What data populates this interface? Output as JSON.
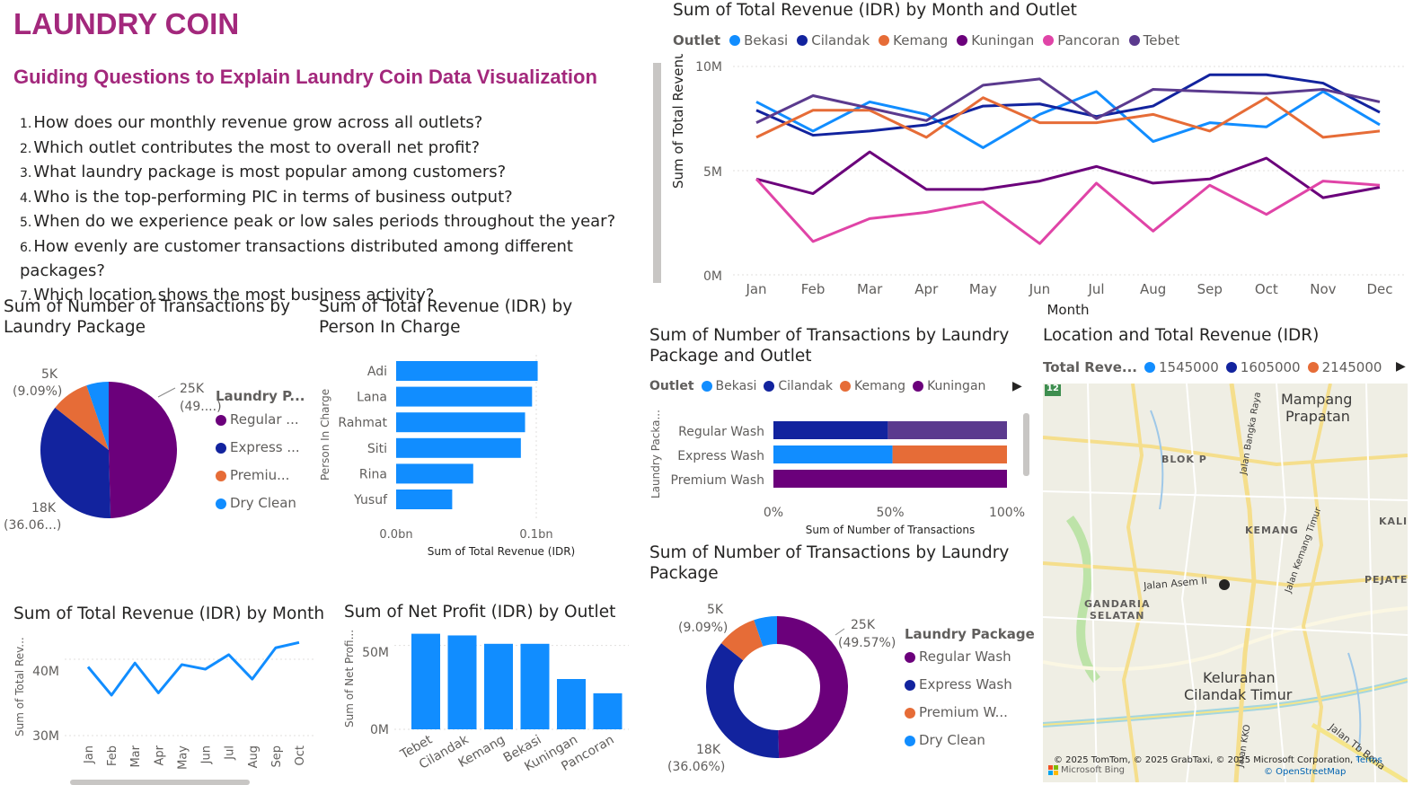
{
  "header": {
    "title": "LAUNDRY COIN",
    "subtitle": "Guiding Questions to Explain Laundry Coin Data Visualization"
  },
  "questions": [
    {
      "num": "1.",
      "text": "How does our monthly revenue grow across all outlets?"
    },
    {
      "num": "2.",
      "text": "Which outlet contributes the most to overall net profit?"
    },
    {
      "num": "3.",
      "text": "What laundry package is most popular among customers?"
    },
    {
      "num": "4.",
      "text": "Who is the top-performing PIC in terms of business output?"
    },
    {
      "num": "5.",
      "text": "When do we experience peak or low sales periods throughout the year?"
    },
    {
      "num": "6.",
      "text": "How evenly are customer transactions distributed among different packages?"
    },
    {
      "num": "7.",
      "text": "Which location shows the most business activity?"
    }
  ],
  "colors": {
    "accent": "#a3287c",
    "bekasi": "#118dff",
    "cilandak": "#12239e",
    "kemang": "#e66c37",
    "kuningan": "#6b007b",
    "pancoran": "#e044a7",
    "tebet": "#5b3a8e",
    "bar": "#118dff"
  },
  "revenue_by_month_outlet": {
    "title": "Sum of Total Revenue (IDR) by Month and Outlet",
    "legend_title": "Outlet",
    "xlabel": "Month",
    "ylabel": "Sum of Total Revenue (IDR)",
    "y_ticks": [
      "10M",
      "5M",
      "0M"
    ],
    "months": [
      "Jan",
      "Feb",
      "Mar",
      "Apr",
      "May",
      "Jun",
      "Jul",
      "Aug",
      "Sep",
      "Oct",
      "Nov",
      "Dec"
    ]
  },
  "pie1": {
    "title": "Sum of Number of Transactions by Laundry Package",
    "legend_title": "Laundry P...",
    "legend": [
      "Regular ...",
      "Express ...",
      "Premiu...",
      "Dry Clean"
    ],
    "label_top_right": [
      "25K",
      "(49....)"
    ],
    "label_bottom_left": [
      "18K",
      "(36.06...)"
    ],
    "label_top_left": [
      "5K",
      "(9.09%)"
    ]
  },
  "pic_chart": {
    "title": "Sum of Total Revenue (IDR) by Person In Charge",
    "ylabel": "Person In Charge",
    "xlabel": "Sum of Total Revenue (IDR)",
    "x_ticks": [
      "0.0bn",
      "0.1bn"
    ]
  },
  "stacked_chart": {
    "title": "Sum of Number of Transactions by Laundry Package and Outlet",
    "legend_title": "Outlet",
    "legend": [
      "Bekasi",
      "Cilandak",
      "Kemang",
      "Kuningan"
    ],
    "ylabel": "Laundry Packa...",
    "xlabel": "Sum of Number of Transactions",
    "x_ticks": [
      "0%",
      "50%",
      "100%"
    ]
  },
  "map": {
    "title": "Location and Total Revenue (IDR)",
    "legend_title": "Total Reve...",
    "legend": [
      "1545000",
      "1605000",
      "2145000"
    ],
    "labels": {
      "mampang": "Mampang",
      "prapatan": "Prapatan",
      "blokp": "BLOK P",
      "kemang": "KEMANG",
      "kali": "KALI",
      "pejate": "PEJATE",
      "gandaria": "GANDARIA",
      "selatan": "SELATAN",
      "kelurahan": "Kelurahan",
      "cilandak_timur": "Cilandak Timur",
      "jalan_asem": "Jalan Asem II",
      "jalan_bangka": "Jalan Bangka Raya",
      "jalan_kemang": "Jalan Kemang Timur",
      "jalan_tb": "Jalan Tb Bona",
      "jalan_kko": "Jalan KKO",
      "road_num": "12"
    },
    "copyright": "© 2025 TomTom, © 2025 GrabTaxi, © 2025 Microsoft Corporation,",
    "terms": "Terms",
    "bing": "Microsoft Bing",
    "osm": "© OpenStreetMap"
  },
  "revenue_by_month": {
    "title": "Sum of Total Revenue (IDR) by Month",
    "ylabel": "Sum of Total Rev...",
    "y_ticks": [
      "40M",
      "30M"
    ],
    "months": [
      "Jan",
      "Feb",
      "Mar",
      "Apr",
      "May",
      "Jun",
      "Jul",
      "Aug",
      "Sep",
      "Oct"
    ]
  },
  "net_profit": {
    "title": "Sum of Net Profit (IDR) by Outlet",
    "ylabel": "Sum of Net Profi...",
    "y_ticks": [
      "50M",
      "0M"
    ]
  },
  "donut": {
    "title": "Sum of Number of Transactions by Laundry Package",
    "legend_title": "Laundry Package",
    "legend": [
      "Regular Wash",
      "Express Wash",
      "Premium W...",
      "Dry Clean"
    ],
    "label_top_right": [
      "25K",
      "(49.57%)"
    ],
    "label_bottom_left": [
      "18K",
      "(36.06%)"
    ],
    "label_top_left": [
      "5K",
      "(9.09%)"
    ]
  },
  "chart_data": [
    {
      "type": "line",
      "title": "Sum of Total Revenue (IDR) by Month and Outlet",
      "xlabel": "Month",
      "ylabel": "Sum of Total Revenue (IDR)",
      "ylim": [
        0,
        10000000
      ],
      "x": [
        "Jan",
        "Feb",
        "Mar",
        "Apr",
        "May",
        "Jun",
        "Jul",
        "Aug",
        "Sep",
        "Oct",
        "Nov",
        "Dec"
      ],
      "series": [
        {
          "name": "Bekasi",
          "color": "#118dff",
          "values": [
            8300000,
            6900000,
            8300000,
            7700000,
            6100000,
            7700000,
            8800000,
            6400000,
            7300000,
            7100000,
            8800000,
            7200000
          ]
        },
        {
          "name": "Cilandak",
          "color": "#12239e",
          "values": [
            7900000,
            6700000,
            6900000,
            7200000,
            8100000,
            8200000,
            7600000,
            8100000,
            9600000,
            9600000,
            9200000,
            7800000
          ]
        },
        {
          "name": "Kemang",
          "color": "#e66c37",
          "values": [
            6600000,
            7900000,
            7900000,
            6600000,
            8500000,
            7300000,
            7300000,
            7700000,
            6900000,
            8500000,
            6600000,
            6900000
          ]
        },
        {
          "name": "Kuningan",
          "color": "#6b007b",
          "values": [
            4600000,
            3900000,
            5900000,
            4100000,
            4100000,
            4500000,
            5200000,
            4400000,
            4600000,
            5600000,
            3700000,
            4200000
          ]
        },
        {
          "name": "Pancoran",
          "color": "#e044a7",
          "values": [
            4600000,
            1600000,
            2700000,
            3000000,
            3500000,
            1500000,
            4400000,
            2100000,
            4300000,
            2900000,
            4500000,
            4300000
          ]
        },
        {
          "name": "Tebet",
          "color": "#5b3a8e",
          "values": [
            7300000,
            8600000,
            8000000,
            7400000,
            9100000,
            9400000,
            7500000,
            8900000,
            8800000,
            8700000,
            8900000,
            8300000
          ]
        }
      ]
    },
    {
      "type": "pie",
      "title": "Sum of Number of Transactions by Laundry Package",
      "categories": [
        "Regular Wash",
        "Express Wash",
        "Premium Wash",
        "Dry Clean"
      ],
      "values": [
        49.57,
        36.06,
        9.09,
        5.28
      ],
      "colors": [
        "#6b007b",
        "#12239e",
        "#e66c37",
        "#118dff"
      ]
    },
    {
      "type": "bar",
      "orientation": "horizontal",
      "title": "Sum of Total Revenue (IDR) by Person In Charge",
      "categories": [
        "Adi",
        "Lana",
        "Rahmat",
        "Siti",
        "Rina",
        "Yusuf"
      ],
      "values": [
        0.101,
        0.097,
        0.092,
        0.089,
        0.055,
        0.04
      ],
      "xlim": [
        0,
        0.1
      ],
      "unit": "bn"
    },
    {
      "type": "bar",
      "orientation": "horizontal",
      "stacked": "percent",
      "title": "Sum of Number of Transactions by Laundry Package and Outlet",
      "categories": [
        "Regular Wash",
        "Express Wash",
        "Premium Wash"
      ],
      "series": [
        {
          "name": "Bekasi",
          "color": "#118dff",
          "values": [
            0,
            51,
            0
          ]
        },
        {
          "name": "Cilandak",
          "color": "#12239e",
          "values": [
            49,
            0,
            0
          ]
        },
        {
          "name": "Kemang",
          "color": "#e66c37",
          "values": [
            0,
            49,
            0
          ]
        },
        {
          "name": "Kuningan",
          "color": "#6b007b",
          "values": [
            0,
            0,
            100
          ]
        },
        {
          "name": "Tebet",
          "color": "#5b3a8e",
          "values": [
            51,
            0,
            0
          ]
        }
      ]
    },
    {
      "type": "line",
      "title": "Sum of Total Revenue (IDR) by Month",
      "x": [
        "Jan",
        "Feb",
        "Mar",
        "Apr",
        "May",
        "Jun",
        "Jul",
        "Aug",
        "Sep",
        "Oct"
      ],
      "values": [
        39000000,
        35300000,
        39500000,
        35600000,
        39300000,
        38700000,
        40600000,
        37400000,
        41500000,
        42200000
      ],
      "ylim": [
        30000000,
        44000000
      ]
    },
    {
      "type": "bar",
      "title": "Sum of Net Profit (IDR) by Outlet",
      "categories": [
        "Tebet",
        "Cilandak",
        "Kemang",
        "Bekasi",
        "Kuningan",
        "Pancoran"
      ],
      "values": [
        57000000,
        56000000,
        51000000,
        51000000,
        30000000,
        21500000
      ],
      "ylim": [
        0,
        60000000
      ]
    },
    {
      "type": "pie",
      "subtype": "donut",
      "title": "Sum of Number of Transactions by Laundry Package",
      "categories": [
        "Regular Wash",
        "Express Wash",
        "Premium Wash",
        "Dry Clean"
      ],
      "values": [
        49.57,
        36.06,
        9.09,
        5.28
      ],
      "colors": [
        "#6b007b",
        "#12239e",
        "#e66c37",
        "#118dff"
      ]
    }
  ]
}
